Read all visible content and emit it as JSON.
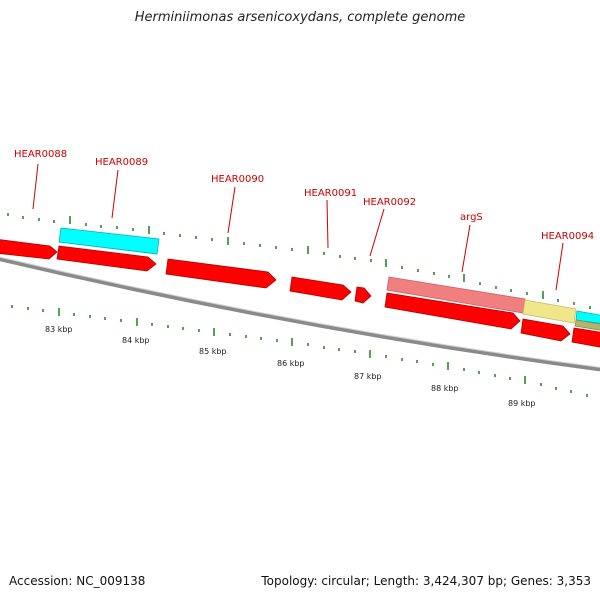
{
  "title": "Herminiimonas arsenicoxydans, complete genome",
  "accession": "Accession: NC_009138",
  "topology": "Topology: circular; Length: 3,424,307 bp; Genes: 3,353",
  "colors": {
    "cds": "#ff0000",
    "highlight_cyan": "#00ffff",
    "rna_pink": "#f08080",
    "khaki": "#f0e68c",
    "olive": "#b4b46e",
    "backbone": "#808080",
    "tick": "#2a8a2a",
    "label": "#cc0000"
  },
  "gene_labels": [
    "HEAR0088",
    "HEAR0089",
    "HEAR0090",
    "HEAR0091",
    "HEAR0092",
    "argS",
    "HEAR0094"
  ],
  "kbp_labels": [
    "83 kbp",
    "84 kbp",
    "85 kbp",
    "86 kbp",
    "87 kbp",
    "88 kbp",
    "89 kbp"
  ]
}
